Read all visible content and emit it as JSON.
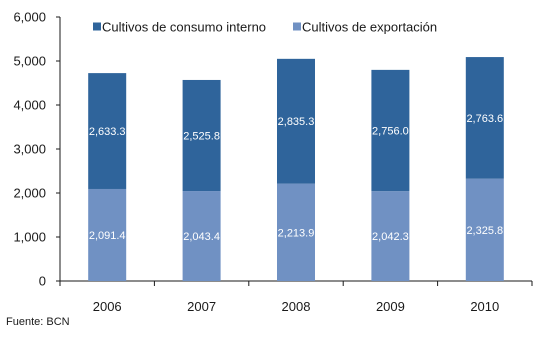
{
  "chart_data": {
    "type": "bar",
    "stacked": true,
    "categories": [
      "2006",
      "2007",
      "2008",
      "2009",
      "2010"
    ],
    "series": [
      {
        "name": "Cultivos de exportación",
        "values": [
          2091.4,
          2043.4,
          2213.9,
          2042.3,
          2325.8
        ],
        "color": "#7091c3",
        "labels": [
          "2,091.4",
          "2,043.4",
          "2,213.9",
          "2,042.3",
          "2,325.8"
        ]
      },
      {
        "name": "Cultivos de consumo interno",
        "values": [
          2633.3,
          2525.8,
          2835.3,
          2756.0,
          2763.6
        ],
        "color": "#2f649b",
        "labels": [
          "2,633.3",
          "2,525.8",
          "2,835.3",
          "2,756.0",
          "2,763.6"
        ]
      }
    ],
    "legend_order": [
      "Cultivos de consumo interno",
      "Cultivos de exportación"
    ],
    "legend_position": "top",
    "ylim": [
      0,
      6000
    ],
    "yticks": [
      0,
      1000,
      2000,
      3000,
      4000,
      5000,
      6000
    ],
    "ytick_labels": [
      "0",
      "1,000",
      "2,000",
      "3,000",
      "4,000",
      "5,000",
      "6,000"
    ],
    "grid": false,
    "title": "",
    "xlabel": "",
    "ylabel": ""
  },
  "source": "Fuente: BCN"
}
